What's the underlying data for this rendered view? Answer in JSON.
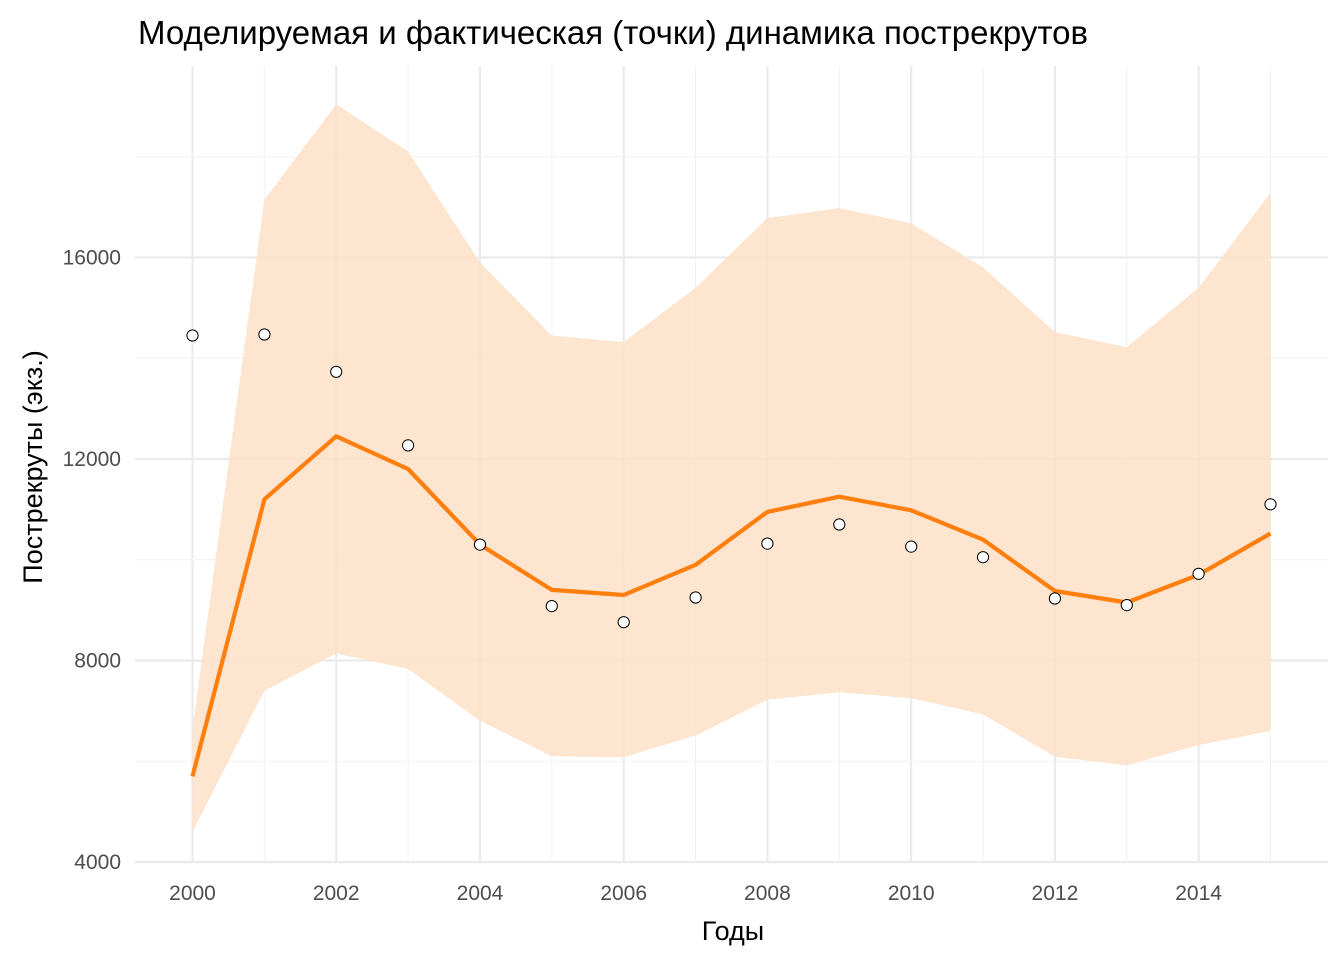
{
  "chart_data": {
    "type": "line",
    "title": "Моделируемая и фактическая (точки) динамика пострекрутов",
    "xlabel": "Годы",
    "ylabel": "Пострекруты (экз.)",
    "x": [
      2000,
      2001,
      2002,
      2003,
      2004,
      2005,
      2006,
      2007,
      2008,
      2009,
      2010,
      2011,
      2012,
      2013,
      2014,
      2015
    ],
    "xlim": [
      1999.2,
      2015.8
    ],
    "ylim": [
      4000,
      19800
    ],
    "x_ticks": [
      2000,
      2002,
      2004,
      2006,
      2008,
      2010,
      2012,
      2014
    ],
    "x_tick_labels": [
      "2000",
      "2002",
      "2004",
      "2006",
      "2008",
      "2010",
      "2012",
      "2014"
    ],
    "y_ticks": [
      4000,
      8000,
      12000,
      16000
    ],
    "y_tick_labels": [
      "4000",
      "8000",
      "12000",
      "16000"
    ],
    "grid": true,
    "colors": {
      "line": "#ff7f0e",
      "ribbon": "#fde0c8",
      "point_fill": "#ffffff",
      "point_stroke": "#000000"
    },
    "series": [
      {
        "kind": "line",
        "values": [
          5700,
          11200,
          12450,
          11800,
          10300,
          9400,
          9300,
          9900,
          10950,
          11250,
          10980,
          10400,
          9380,
          9150,
          9700,
          10520
        ]
      },
      {
        "kind": "points",
        "values": [
          14450,
          14470,
          13730,
          12270,
          10300,
          9080,
          8760,
          9250,
          10320,
          10700,
          10260,
          10050,
          9230,
          9100,
          9720,
          11100
        ]
      },
      {
        "kind": "ribbon",
        "lower": [
          4600,
          7400,
          8140,
          7830,
          6800,
          6100,
          6080,
          6510,
          7220,
          7370,
          7250,
          6930,
          6090,
          5920,
          6320,
          6600
        ],
        "upper": [
          6650,
          17150,
          19040,
          18100,
          15900,
          14450,
          14320,
          15400,
          16780,
          16980,
          16680,
          15800,
          14520,
          14220,
          15400,
          17280
        ]
      }
    ]
  }
}
